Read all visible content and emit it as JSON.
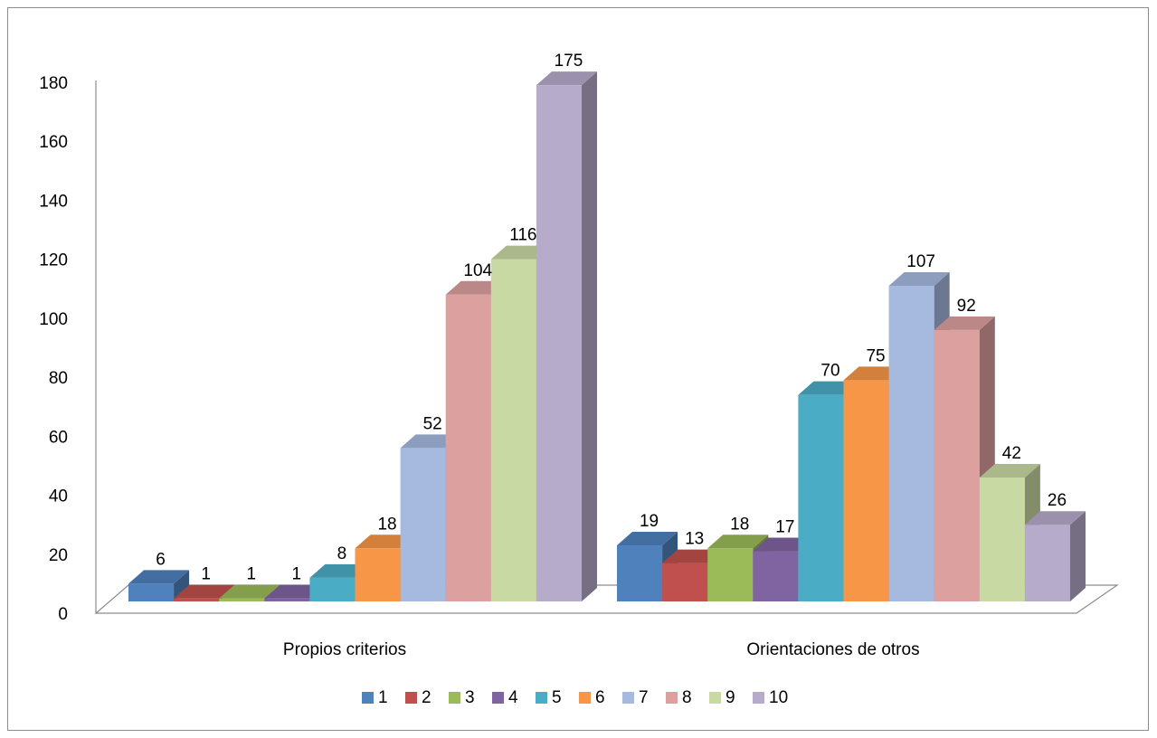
{
  "chart_data": {
    "type": "bar",
    "title": "",
    "xlabel": "",
    "ylabel": "",
    "ylim": [
      0,
      180
    ],
    "yticks": [
      0,
      20,
      40,
      60,
      80,
      100,
      120,
      140,
      160,
      180
    ],
    "categories": [
      "Propios criterios",
      "Orientaciones de otros"
    ],
    "series": [
      {
        "name": "1",
        "color": "#4F81BD",
        "values": [
          6,
          19
        ]
      },
      {
        "name": "2",
        "color": "#C0504D",
        "values": [
          1,
          13
        ]
      },
      {
        "name": "3",
        "color": "#9BBB59",
        "values": [
          1,
          18
        ]
      },
      {
        "name": "4",
        "color": "#8064A2",
        "values": [
          1,
          17
        ]
      },
      {
        "name": "5",
        "color": "#4BACC6",
        "values": [
          8,
          70
        ]
      },
      {
        "name": "6",
        "color": "#F79646",
        "values": [
          18,
          75
        ]
      },
      {
        "name": "7",
        "color": "#A6B9DF",
        "values": [
          52,
          107
        ]
      },
      {
        "name": "8",
        "color": "#DCA09F",
        "values": [
          104,
          92
        ]
      },
      {
        "name": "9",
        "color": "#C9D9A3",
        "values": [
          116,
          42
        ]
      },
      {
        "name": "10",
        "color": "#B6ABCB",
        "values": [
          175,
          26
        ]
      }
    ],
    "legend_position": "bottom",
    "gridlines": false,
    "style": "3d-clustered-column"
  }
}
